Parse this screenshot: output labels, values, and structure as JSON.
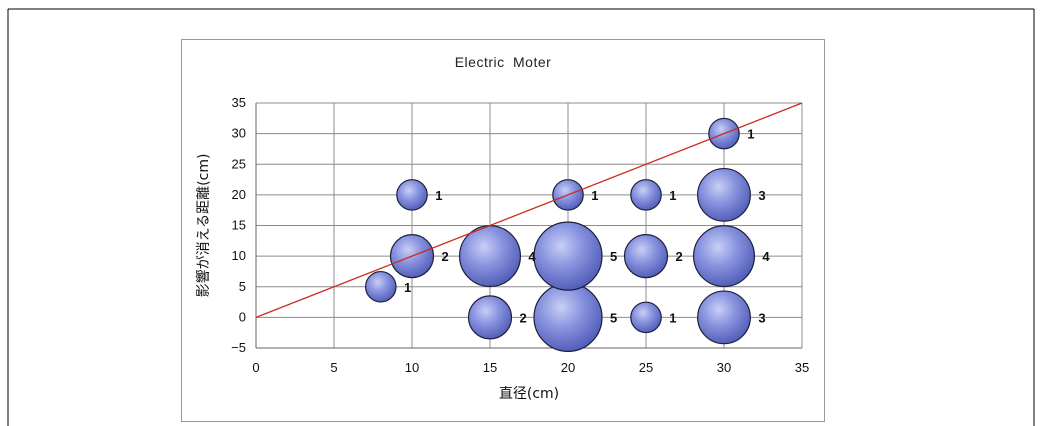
{
  "chart_data": {
    "type": "bubble",
    "title": "Electric  Moter",
    "xlabel": "直径(cm)",
    "ylabel": "影響が消える距離(cm)",
    "xlim": [
      0,
      35
    ],
    "ylim": [
      -5,
      35
    ],
    "x_ticks": [
      "0",
      "5",
      "10",
      "15",
      "20",
      "25",
      "30",
      "35"
    ],
    "y_ticks": [
      "35",
      "30",
      "25",
      "20",
      "15",
      "10",
      "5",
      "0",
      "−5"
    ],
    "grid": true,
    "legend": "none",
    "bubble_color": "#7b86d6",
    "trend_line": {
      "color": "#cc2a1f",
      "from": [
        0,
        0
      ],
      "to": [
        35,
        35
      ]
    },
    "points": [
      {
        "x": 8,
        "y": 5,
        "size": 1,
        "label": "1"
      },
      {
        "x": 10,
        "y": 10,
        "size": 2,
        "label": "2"
      },
      {
        "x": 10,
        "y": 20,
        "size": 1,
        "label": "1"
      },
      {
        "x": 15,
        "y": 0,
        "size": 2,
        "label": "2"
      },
      {
        "x": 15,
        "y": 10,
        "size": 4,
        "label": "4"
      },
      {
        "x": 20,
        "y": 0,
        "size": 5,
        "label": "5"
      },
      {
        "x": 20,
        "y": 10,
        "size": 5,
        "label": "5"
      },
      {
        "x": 20,
        "y": 20,
        "size": 1,
        "label": "1"
      },
      {
        "x": 25,
        "y": 0,
        "size": 1,
        "label": "1"
      },
      {
        "x": 25,
        "y": 10,
        "size": 2,
        "label": "2"
      },
      {
        "x": 25,
        "y": 20,
        "size": 1,
        "label": "1"
      },
      {
        "x": 30,
        "y": 0,
        "size": 3,
        "label": "3"
      },
      {
        "x": 30,
        "y": 10,
        "size": 4,
        "label": "4"
      },
      {
        "x": 30,
        "y": 20,
        "size": 3,
        "label": "3"
      },
      {
        "x": 30,
        "y": 30,
        "size": 1,
        "label": "1"
      }
    ]
  }
}
